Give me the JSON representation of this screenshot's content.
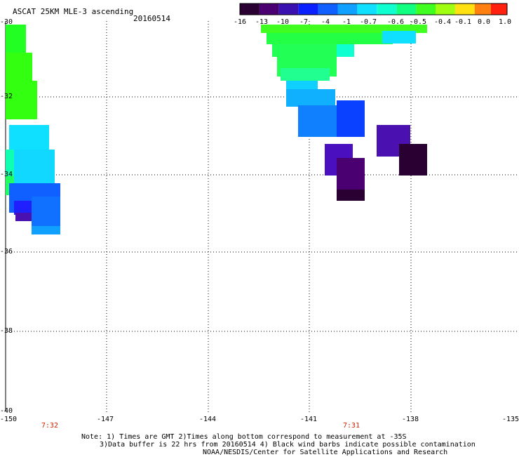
{
  "header": {
    "title": "ASCAT 25KM MLE-3 ascending",
    "date": "20160514"
  },
  "colorbar": {
    "labels": [
      "-16",
      "-13",
      "-10",
      "-7",
      "-4",
      "-1",
      "-0.7",
      "-0.6",
      "-0.5",
      "-0.4",
      "-0.1",
      "0.0",
      "1.0"
    ],
    "colors": [
      "#2a0033",
      "#4a0070",
      "#3a10b0",
      "#0a20ff",
      "#1060ff",
      "#10a0ff",
      "#10e0ff",
      "#10ffd0",
      "#10ff80",
      "#40ff20",
      "#a0ff10",
      "#ffe010",
      "#ff8010",
      "#ff2010"
    ]
  },
  "map": {
    "lat_labels": [
      "-30",
      "-32",
      "-34",
      "-36",
      "-38",
      "-40"
    ],
    "lon_labels": [
      "-150",
      "-147",
      "-144",
      "-141",
      "-138",
      "-135"
    ],
    "time_labels": [
      "7:32",
      "7:31"
    ]
  },
  "notes": {
    "line1": "Note: 1) Times are GMT 2)Times along bottom correspond to measurement at -35S",
    "line2": "3)Data buffer is 22 hrs from 20160514 4) Black wind barbs indicate possible contamination",
    "line3": "NOAA/NESDIS/Center for Satellite Applications and Research"
  }
}
